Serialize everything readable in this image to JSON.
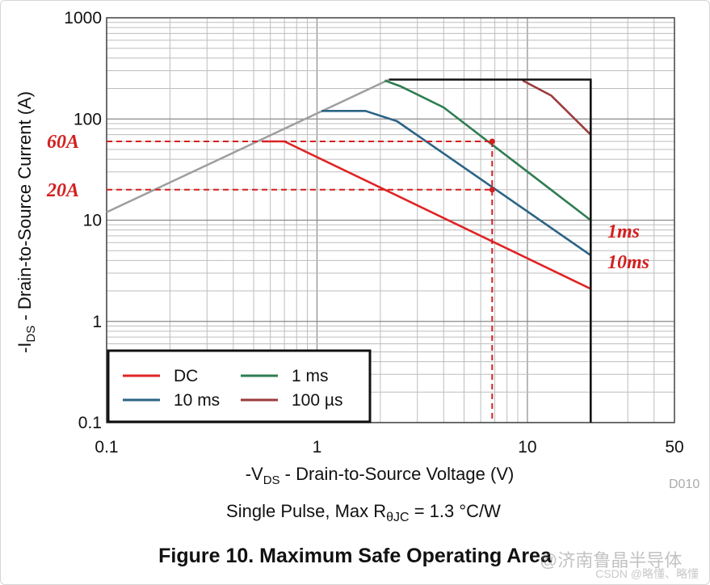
{
  "chart_data": {
    "type": "line",
    "xscale": "log",
    "yscale": "log",
    "xlim": [
      0.1,
      50
    ],
    "ylim": [
      0.1,
      1000
    ],
    "x_ticks": [
      {
        "value": 0.1,
        "label": "0.1"
      },
      {
        "value": 1,
        "label": "1"
      },
      {
        "value": 10,
        "label": "10"
      },
      {
        "value": 50,
        "label": "50"
      }
    ],
    "y_ticks": [
      {
        "value": 0.1,
        "label": "0.1"
      },
      {
        "value": 1,
        "label": "1"
      },
      {
        "value": 10,
        "label": "10"
      },
      {
        "value": 100,
        "label": "100"
      },
      {
        "value": 1000,
        "label": "1000"
      }
    ],
    "xlabel_parts": [
      "-V",
      "DS",
      " - Drain-to-Source Voltage (V)"
    ],
    "ylabel_parts": [
      "-I",
      "DS",
      " - Drain-to-Source Current (A)"
    ],
    "subtitle_parts": [
      "Single Pulse, Max R",
      "θJC",
      " = 1.3 °C/W"
    ],
    "code": "D010",
    "grid": true,
    "legend_position": "bottom-left",
    "series": [
      {
        "name": "DC",
        "color": "#e02424",
        "points": [
          [
            0.55,
            60
          ],
          [
            0.7,
            60
          ],
          [
            20,
            2.1
          ]
        ]
      },
      {
        "name": "10 ms",
        "color": "#2b6385",
        "points": [
          [
            1.05,
            120
          ],
          [
            1.7,
            120
          ],
          [
            2.4,
            95
          ],
          [
            20,
            4.5
          ]
        ]
      },
      {
        "name": "1 ms",
        "color": "#2f7d51",
        "points": [
          [
            2.1,
            240
          ],
          [
            2.5,
            210
          ],
          [
            4,
            130
          ],
          [
            20,
            10
          ]
        ]
      },
      {
        "name": "100 µs",
        "color": "#9b3b3b",
        "points": [
          [
            9.5,
            240
          ],
          [
            13,
            170
          ],
          [
            20,
            70
          ]
        ]
      }
    ],
    "limit_line": {
      "color": "#9e9e9e",
      "points": [
        [
          0.1,
          12
        ],
        [
          2.2,
          245
        ]
      ]
    },
    "boundary": {
      "color": "#111111",
      "points": [
        [
          2.2,
          245
        ],
        [
          20,
          245
        ],
        [
          20,
          0.1
        ]
      ]
    },
    "annotations": {
      "color": "#d42020",
      "hlines": [
        {
          "label": "60A",
          "y": 60,
          "x_end": 6.8
        },
        {
          "label": "20A",
          "y": 20,
          "x_end": 6.8
        }
      ],
      "vline_x": 6.8,
      "right_labels": [
        "1ms",
        "10ms"
      ]
    }
  },
  "figure_caption": "Figure 10. Maximum Safe Operating Area",
  "watermark_text": "CSDN @略懂、略懂",
  "watermark2_text": "@济南鲁晶半导体"
}
